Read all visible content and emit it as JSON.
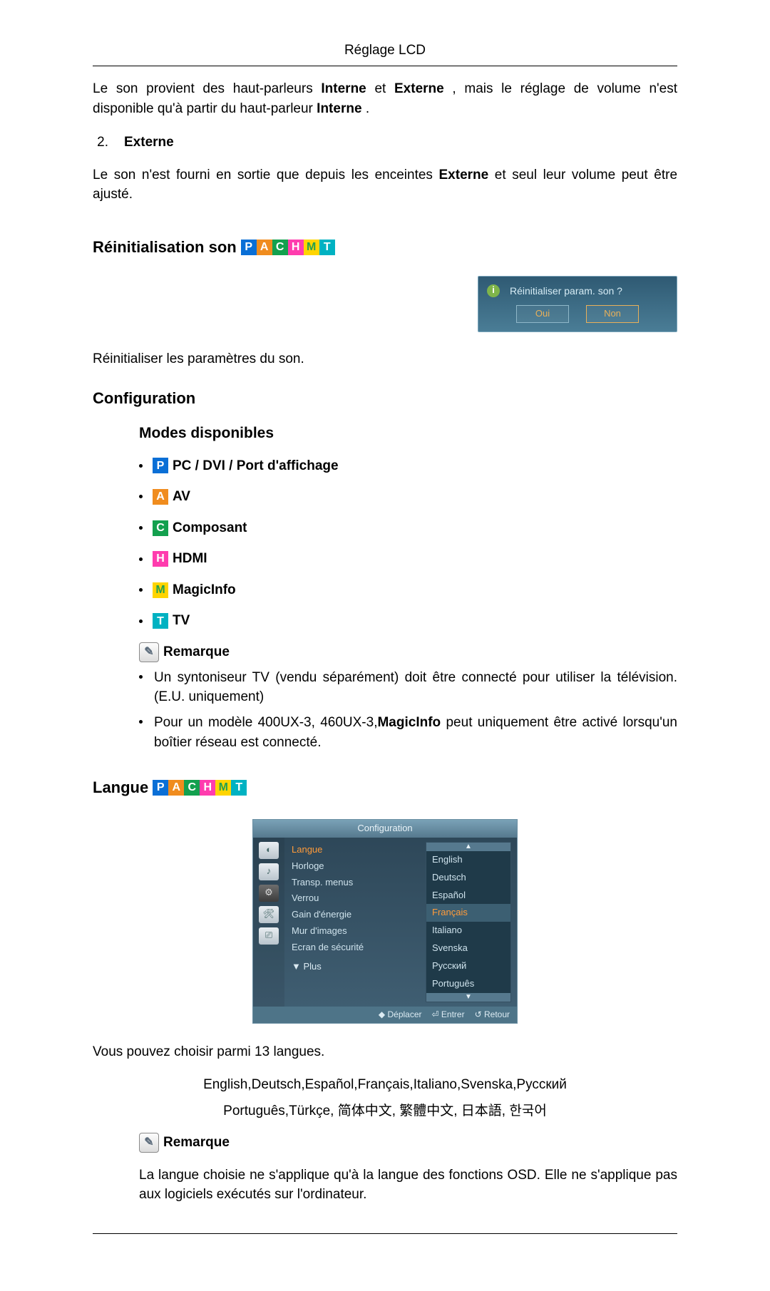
{
  "header": {
    "title": "Réglage LCD"
  },
  "intro": {
    "para1_pre": "Le son provient des haut-parleurs ",
    "interne": "Interne",
    "and": " et ",
    "externe": "Externe",
    "para1_post": ", mais le réglage de volume n'est disponible qu'à partir du haut-parleur ",
    "interne2": "Interne",
    "period": "."
  },
  "ext": {
    "num": "2.",
    "title": "Externe",
    "body_pre": "Le son n'est fourni en sortie que depuis les enceintes ",
    "externe": "Externe",
    "body_post": " et seul leur volume peut être ajusté."
  },
  "reset": {
    "heading": "Réinitialisation son",
    "dialog_q": "Réinitialiser param. son ?",
    "oui": "Oui",
    "non": "Non",
    "caption": "Réinitialiser les paramètres du son."
  },
  "config": {
    "heading": "Configuration",
    "modes_heading": "Modes disponibles",
    "modes": [
      {
        "chip": "P",
        "label": " PC / DVI / Port d'affichage"
      },
      {
        "chip": "A",
        "label": " AV"
      },
      {
        "chip": "C",
        "label": " Composant"
      },
      {
        "chip": "H",
        "label": " HDMI"
      },
      {
        "chip": "M",
        "label": " MagicInfo"
      },
      {
        "chip": "T",
        "label": " TV"
      }
    ],
    "remarque": "Remarque",
    "note1": "Un syntoniseur TV (vendu séparément) doit être connecté pour utiliser la télévision. (E.U. uniquement)",
    "note2_pre": "Pour un modèle 400UX-3, 460UX-3,",
    "note2_bold": "MagicInfo",
    "note2_post": " peut uniquement être activé lorsqu'un boîtier réseau est connecté."
  },
  "langue": {
    "heading": "Langue ",
    "panel_title": "Configuration",
    "left_items": [
      {
        "text": "Langue",
        "hi": true
      },
      {
        "text": "Horloge",
        "hi": false
      },
      {
        "text": "Transp. menus",
        "hi": false
      },
      {
        "text": "Verrou",
        "hi": false
      },
      {
        "text": "Gain d'énergie",
        "hi": false
      },
      {
        "text": "Mur d'images",
        "hi": false
      },
      {
        "text": "Ecran de sécurité",
        "hi": false
      }
    ],
    "more": "▼ Plus",
    "langs": [
      {
        "text": "English",
        "hi": false
      },
      {
        "text": "Deutsch",
        "hi": false
      },
      {
        "text": "Español",
        "hi": false
      },
      {
        "text": "Français",
        "hi": true
      },
      {
        "text": "Italiano",
        "hi": false
      },
      {
        "text": "Svenska",
        "hi": false
      },
      {
        "text": "Русский",
        "hi": false
      },
      {
        "text": "Português",
        "hi": false
      }
    ],
    "foot_move": "◆ Déplacer",
    "foot_enter": "⏎ Entrer",
    "foot_return": "↺ Retour",
    "caption": "Vous pouvez choisir parmi 13 langues.",
    "lang_line1": "English,Deutsch,Español,Français,Italiano,Svenska,Русский",
    "lang_line2": "Português,Türkçe, 简体中文,  繁體中文, 日本語, 한국어",
    "remarque": "Remarque",
    "note": "La langue choisie ne s'applique qu'à la langue des fonctions OSD. Elle ne s'applique pas aux logiciels exécutés sur l'ordinateur."
  },
  "colors": {
    "chips": {
      "P": "#0a6fd6",
      "A": "#f08c1e",
      "C": "#13a04e",
      "H": "#ff3cae",
      "M": "#ffd400",
      "T": "#00b2c2"
    }
  }
}
